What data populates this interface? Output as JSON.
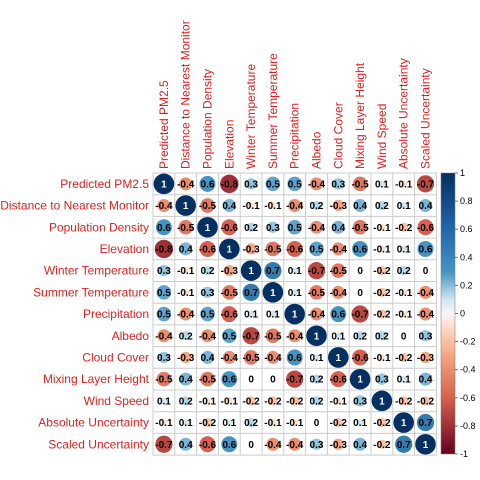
{
  "chart_data": {
    "type": "heatmap",
    "title": "",
    "labels": [
      "Predicted PM2.5",
      "Distance to Nearest Monitor",
      "Population Density",
      "Elevation",
      "Winter Temperature",
      "Summer Temperature",
      "Precipitation",
      "Albedo",
      "Cloud Cover",
      "Mixing Layer Height",
      "Wind Speed",
      "Absolute Uncertainty",
      "Scaled Uncertainty"
    ],
    "matrix": [
      [
        1,
        -0.4,
        0.6,
        -0.8,
        0.3,
        0.5,
        0.5,
        -0.4,
        0.3,
        -0.5,
        0.1,
        -0.1,
        -0.7
      ],
      [
        -0.4,
        1,
        -0.5,
        0.4,
        -0.1,
        -0.1,
        -0.4,
        0.2,
        -0.3,
        0.4,
        0.2,
        0.1,
        0.4
      ],
      [
        0.6,
        -0.5,
        1,
        -0.6,
        0.2,
        0.3,
        0.5,
        -0.4,
        0.4,
        -0.5,
        -0.1,
        -0.2,
        -0.6
      ],
      [
        -0.8,
        0.4,
        -0.6,
        1,
        -0.3,
        -0.5,
        -0.6,
        0.5,
        -0.4,
        0.6,
        -0.1,
        0.1,
        0.6
      ],
      [
        0.3,
        -0.1,
        0.2,
        -0.3,
        1,
        0.7,
        0.1,
        -0.7,
        -0.5,
        0,
        -0.2,
        0.2,
        0
      ],
      [
        0.5,
        -0.1,
        0.3,
        -0.5,
        0.7,
        1,
        0.1,
        -0.5,
        -0.4,
        0,
        -0.2,
        -0.1,
        -0.4
      ],
      [
        0.5,
        -0.4,
        0.5,
        -0.6,
        0.1,
        0.1,
        1,
        -0.4,
        0.6,
        -0.7,
        -0.2,
        -0.1,
        -0.4
      ],
      [
        -0.4,
        0.2,
        -0.4,
        0.5,
        -0.7,
        -0.5,
        -0.4,
        1,
        0.1,
        0.2,
        0.2,
        0,
        0.3
      ],
      [
        0.3,
        -0.3,
        0.4,
        -0.4,
        -0.5,
        -0.4,
        0.6,
        0.1,
        1,
        -0.6,
        -0.1,
        -0.2,
        -0.3
      ],
      [
        -0.5,
        0.4,
        -0.5,
        0.6,
        0,
        0,
        -0.7,
        0.2,
        -0.6,
        1,
        0.3,
        0.1,
        0.4
      ],
      [
        0.1,
        0.2,
        -0.1,
        -0.1,
        -0.2,
        -0.2,
        -0.2,
        0.2,
        -0.1,
        0.3,
        1,
        -0.2,
        -0.2
      ],
      [
        -0.1,
        0.1,
        -0.2,
        0.1,
        0.2,
        -0.1,
        -0.1,
        0,
        -0.2,
        0.1,
        -0.2,
        1,
        0.7
      ],
      [
        -0.7,
        0.4,
        -0.6,
        0.6,
        0,
        -0.4,
        -0.4,
        0.3,
        -0.3,
        0.4,
        -0.2,
        0.7,
        1
      ]
    ],
    "value_range": [
      -1,
      1
    ],
    "colorbar_ticks": [
      1,
      0.8,
      0.6,
      0.4,
      0.2,
      0,
      -0.2,
      -0.4,
      -0.6,
      -0.8,
      -1
    ],
    "marker": "circle",
    "grid": true,
    "legend_position": "right"
  },
  "colors": {
    "negative_end": "#67001f",
    "negative_mid": "#d6604d",
    "neutral": "#f7f7f7",
    "positive_mid": "#4393c3",
    "positive_end": "#053061",
    "label": "#e0201b",
    "grid": "#cccccc"
  }
}
